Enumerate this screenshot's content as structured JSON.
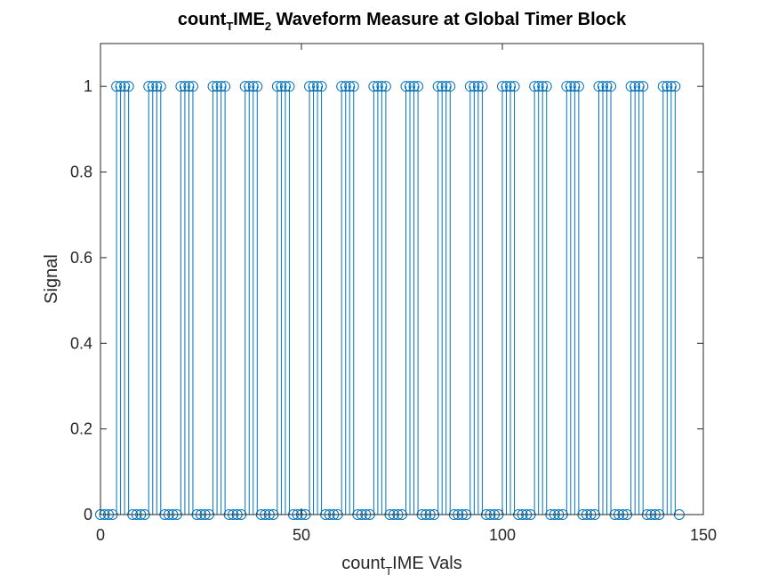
{
  "chart_data": {
    "type": "stem",
    "title": {
      "part1": "count",
      "sub1": "T",
      "part2": "IME",
      "sub2": "2",
      "part3": " Waveform Measure at Global Timer Block"
    },
    "xlabel": {
      "part1": "count",
      "sub1": "T",
      "part2": "IME Vals"
    },
    "ylabel": "Signal",
    "xlim": [
      0,
      150
    ],
    "ylim": [
      0,
      1.1
    ],
    "xticks": [
      0,
      50,
      100,
      150
    ],
    "yticks": [
      0,
      0.2,
      0.4,
      0.6,
      0.8,
      1
    ],
    "xtick_labels": [
      "0",
      "50",
      "100",
      "150"
    ],
    "ytick_labels": [
      "0",
      "0.2",
      "0.4",
      "0.6",
      "0.8",
      "1"
    ],
    "marker": "circle-open",
    "colors": {
      "series": "#0072BD",
      "axis": "#262626"
    },
    "x_start": 0,
    "x_step": 1,
    "values": [
      0,
      0,
      0,
      0,
      1,
      1,
      1,
      1,
      0,
      0,
      0,
      0,
      1,
      1,
      1,
      1,
      0,
      0,
      0,
      0,
      1,
      1,
      1,
      1,
      0,
      0,
      0,
      0,
      1,
      1,
      1,
      1,
      0,
      0,
      0,
      0,
      1,
      1,
      1,
      1,
      0,
      0,
      0,
      0,
      1,
      1,
      1,
      1,
      0,
      0,
      0,
      0,
      1,
      1,
      1,
      1,
      0,
      0,
      0,
      0,
      1,
      1,
      1,
      1,
      0,
      0,
      0,
      0,
      1,
      1,
      1,
      1,
      0,
      0,
      0,
      0,
      1,
      1,
      1,
      1,
      0,
      0,
      0,
      0,
      1,
      1,
      1,
      1,
      0,
      0,
      0,
      0,
      1,
      1,
      1,
      1,
      0,
      0,
      0,
      0,
      1,
      1,
      1,
      1,
      0,
      0,
      0,
      0,
      1,
      1,
      1,
      1,
      0,
      0,
      0,
      0,
      1,
      1,
      1,
      1,
      0,
      0,
      0,
      0,
      1,
      1,
      1,
      1,
      0,
      0,
      0,
      0,
      1,
      1,
      1,
      1,
      0,
      0,
      0,
      0,
      1,
      1,
      1,
      1,
      0
    ]
  }
}
